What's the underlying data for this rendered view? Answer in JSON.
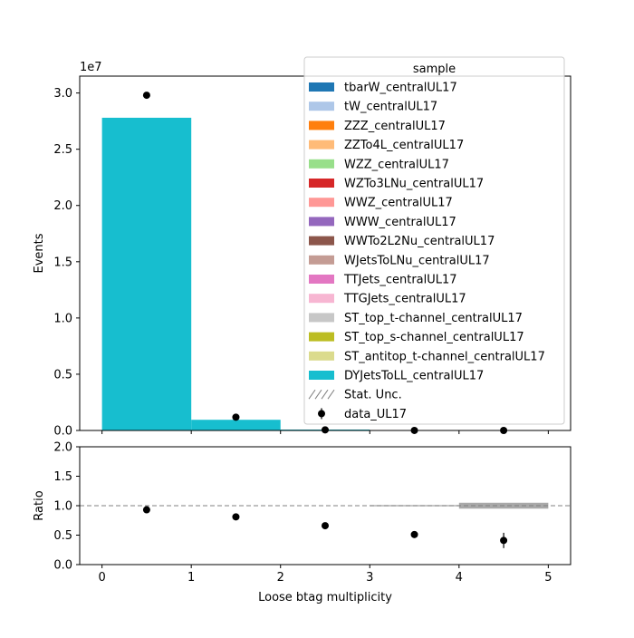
{
  "chart_data": [
    {
      "type": "bar",
      "stacked": true,
      "categories": [
        "0",
        "1",
        "2",
        "3",
        "4"
      ],
      "bin_edges": [
        0,
        1,
        2,
        3,
        4,
        5
      ],
      "xlim": [
        -0.25,
        5.25
      ],
      "ylim": [
        0,
        3.15
      ],
      "ylabel": "Events",
      "y_offset_label": "1e7",
      "y_ticks": [
        0.0,
        0.5,
        1.0,
        1.5,
        2.0,
        2.5,
        3.0
      ],
      "y_tick_labels": [
        "0.0",
        "0.5",
        "1.0",
        "1.5",
        "2.0",
        "2.5",
        "3.0"
      ],
      "series": [
        {
          "name": "tbarW_centralUL17",
          "color": "#1f77b4",
          "values": [
            0,
            0,
            0,
            0,
            0
          ]
        },
        {
          "name": "tW_centralUL17",
          "color": "#aec7e8",
          "values": [
            0,
            0,
            0,
            0,
            0
          ]
        },
        {
          "name": "ZZZ_centralUL17",
          "color": "#ff7f0e",
          "values": [
            0,
            0,
            0,
            0,
            0
          ]
        },
        {
          "name": "ZZTo4L_centralUL17",
          "color": "#ffbb78",
          "values": [
            0,
            0,
            0,
            0,
            0
          ]
        },
        {
          "name": "WZZ_centralUL17",
          "color": "#98df8a",
          "values": [
            0,
            0,
            0,
            0,
            0
          ]
        },
        {
          "name": "WZTo3LNu_centralUL17",
          "color": "#d62728",
          "values": [
            0,
            0,
            0,
            0,
            0
          ]
        },
        {
          "name": "WWZ_centralUL17",
          "color": "#ff9896",
          "values": [
            0,
            0,
            0,
            0,
            0
          ]
        },
        {
          "name": "WWW_centralUL17",
          "color": "#9467bd",
          "values": [
            0,
            0,
            0,
            0,
            0
          ]
        },
        {
          "name": "WWTo2L2Nu_centralUL17",
          "color": "#8c564b",
          "values": [
            0,
            0,
            0,
            0,
            0
          ]
        },
        {
          "name": "WJetsToLNu_centralUL17",
          "color": "#c49c94",
          "values": [
            0,
            0,
            0,
            0,
            0
          ]
        },
        {
          "name": "TTJets_centralUL17",
          "color": "#e377c2",
          "values": [
            0,
            0,
            0,
            0,
            0
          ]
        },
        {
          "name": "TTGJets_centralUL17",
          "color": "#f7b6d2",
          "values": [
            0,
            0,
            0,
            0,
            0
          ]
        },
        {
          "name": "ST_top_t-channel_centralUL17",
          "color": "#c7c7c7",
          "values": [
            0,
            0,
            0,
            0,
            0
          ]
        },
        {
          "name": "ST_top_s-channel_centralUL17",
          "color": "#bcbd22",
          "values": [
            0,
            0,
            0,
            0,
            0
          ]
        },
        {
          "name": "ST_antitop_t-channel_centralUL17",
          "color": "#dbdb8d",
          "values": [
            0,
            0,
            0,
            0,
            0
          ]
        },
        {
          "name": "DYJetsToLL_centralUL17",
          "color": "#17becf",
          "values": [
            2.78,
            0.095,
            0.008,
            0.0006,
            5e-05
          ]
        }
      ],
      "data": {
        "name": "data_UL17",
        "x": [
          0.5,
          1.5,
          2.5,
          3.5,
          4.5
        ],
        "y": [
          2.98,
          0.118,
          0.0055,
          0.0003,
          2e-05
        ]
      },
      "legend": {
        "title": "sample",
        "position": "upper right",
        "stat_unc_label": "Stat. Unc."
      }
    },
    {
      "type": "scatter",
      "xlabel": "Loose btag multiplicity",
      "ylabel": "Ratio",
      "xlim": [
        -0.25,
        5.25
      ],
      "ylim": [
        0.0,
        2.0
      ],
      "x_ticks": [
        0,
        1,
        2,
        3,
        4,
        5
      ],
      "x_tick_labels": [
        "0",
        "1",
        "2",
        "3",
        "4",
        "5"
      ],
      "y_ticks": [
        0.0,
        0.5,
        1.0,
        1.5,
        2.0
      ],
      "y_tick_labels": [
        "0.0",
        "0.5",
        "1.0",
        "1.5",
        "2.0"
      ],
      "reference_line": 1.0,
      "points": {
        "x": [
          0.5,
          1.5,
          2.5,
          3.5,
          4.5
        ],
        "y": [
          0.93,
          0.81,
          0.66,
          0.51,
          0.41
        ],
        "err": [
          0.0,
          0.0,
          0.01,
          0.03,
          0.13
        ]
      },
      "stat_unc_band": {
        "x": [
          0.5,
          1.5,
          2.5,
          3.5,
          4.5
        ],
        "half_width": [
          0.0,
          0.0,
          0.0,
          0.01,
          0.05
        ]
      }
    }
  ]
}
